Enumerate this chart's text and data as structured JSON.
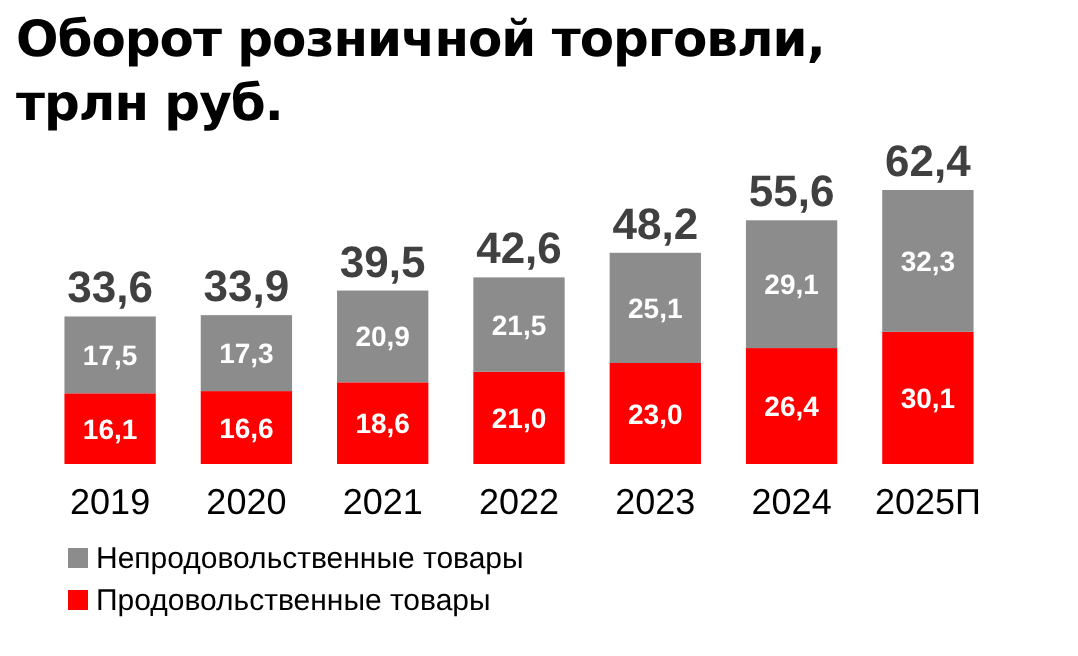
{
  "chart_data": {
    "type": "bar",
    "title": "Оборот розничной торговли, трлн руб.",
    "categories": [
      "2019",
      "2020",
      "2021",
      "2022",
      "2023",
      "2024",
      "2025П"
    ],
    "stacked": true,
    "legend": "bottom left",
    "series": [
      {
        "name": "Продовольственные товары",
        "color": "#ff0000",
        "values": [
          16.1,
          16.6,
          18.6,
          21.0,
          23.0,
          26.4,
          30.1
        ],
        "value_labels": [
          "16,1",
          "16,6",
          "18,6",
          "21,0",
          "23,0",
          "26,4",
          "30,1"
        ]
      },
      {
        "name": "Непродовольственные товары",
        "color": "#8c8c8c",
        "values": [
          17.5,
          17.3,
          20.9,
          21.5,
          25.1,
          29.1,
          32.3
        ],
        "value_labels": [
          "17,5",
          "17,3",
          "20,9",
          "21,5",
          "25,1",
          "29,1",
          "32,3"
        ]
      }
    ],
    "totals": [
      "33,6",
      "33,9",
      "39,5",
      "42,6",
      "48,2",
      "55,6",
      "62,4"
    ]
  }
}
